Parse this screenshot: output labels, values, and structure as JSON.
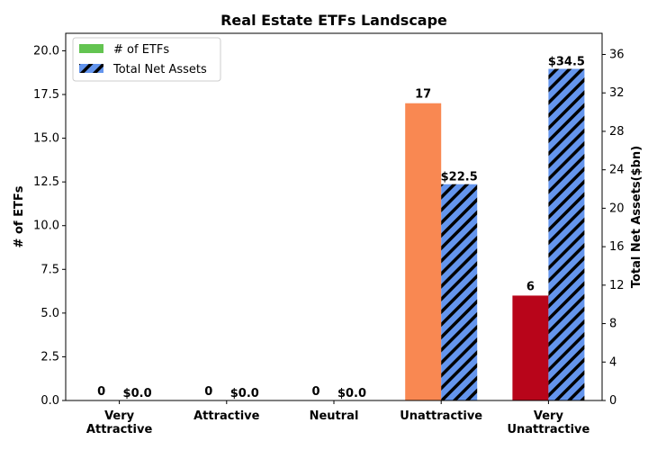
{
  "chart_data": {
    "type": "bar",
    "title": "Real Estate ETFs Landscape",
    "categories": [
      "Very\nAttractive",
      "Attractive",
      "Neutral",
      "Unattractive",
      "Very\nUnattractive"
    ],
    "ylabel_left": "# of ETFs",
    "ylabel_right": "Total Net Assets($bn)",
    "ylim_left": [
      0,
      21
    ],
    "ylim_right": [
      0,
      38.2
    ],
    "yticks_left": [
      "0.0",
      "2.5",
      "5.0",
      "7.5",
      "10.0",
      "12.5",
      "15.0",
      "17.5",
      "20.0"
    ],
    "yticks_right": [
      "0",
      "4",
      "8",
      "12",
      "16",
      "20",
      "24",
      "28",
      "32",
      "36"
    ],
    "grid": false,
    "legend_position": "top-left",
    "series": [
      {
        "name": "# of ETFs",
        "axis": "left",
        "values": [
          0,
          0,
          0,
          17,
          6
        ],
        "labels": [
          "0",
          "0",
          "0",
          "17",
          "6"
        ],
        "colors": [
          "#63c451",
          "#63c451",
          "#f7a07a",
          "#f98852",
          "#b8051a"
        ],
        "legend_color": "#63c451"
      },
      {
        "name": "Total Net Assets",
        "axis": "right",
        "values": [
          0.0,
          0.0,
          0.0,
          22.5,
          34.5
        ],
        "labels": [
          "$0.0",
          "$0.0",
          "$0.0",
          "$22.5",
          "$34.5"
        ],
        "color": "#6495ed",
        "hatch": "diagonal"
      }
    ]
  }
}
